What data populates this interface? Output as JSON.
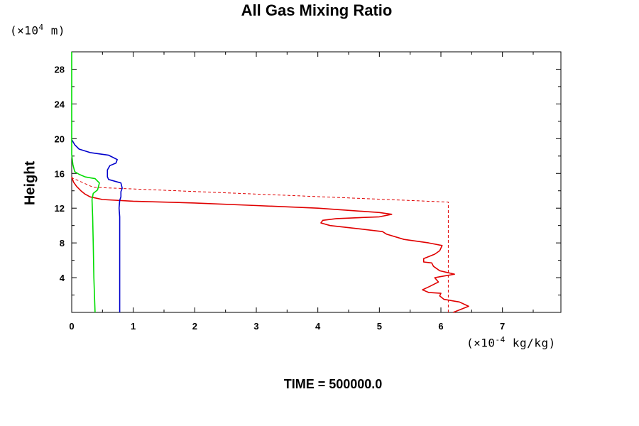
{
  "chart_data": {
    "type": "line",
    "title": "All Gas Mixing Ratio",
    "ylabel": "Height",
    "y_unit_prefix": "(×10",
    "y_unit_exp": "4",
    "y_unit_suffix": " m)",
    "x_unit_prefix": "(×10",
    "x_unit_exp": "-4",
    "x_unit_suffix": " kg/kg)",
    "xlim": [
      0,
      7.95
    ],
    "ylim": [
      0,
      30
    ],
    "xticks": [
      0,
      1,
      2,
      3,
      4,
      5,
      6,
      7
    ],
    "xtick_labels": [
      "0",
      "1",
      "2",
      "3",
      "4",
      "5",
      "6",
      "7"
    ],
    "yticks": [
      4,
      8,
      12,
      16,
      20,
      24,
      28
    ],
    "ytick_labels": [
      "4",
      "8",
      "12",
      "16",
      "20",
      "24",
      "28"
    ],
    "grid": false,
    "colors": {
      "red": "#e00000",
      "blue": "#0000cc",
      "green": "#00dd00",
      "frame": "#000000"
    },
    "series": [
      {
        "color": "red",
        "style": "dashed",
        "points": [
          [
            6.12,
            0
          ],
          [
            6.12,
            12.7
          ],
          [
            0.35,
            14.4
          ],
          [
            0.1,
            15.2
          ],
          [
            0,
            15.5
          ]
        ]
      },
      {
        "color": "red",
        "style": "solid",
        "points": [
          [
            6.2,
            0
          ],
          [
            6.45,
            0.7
          ],
          [
            6.3,
            1.2
          ],
          [
            6.05,
            1.5
          ],
          [
            5.98,
            1.9
          ],
          [
            6.0,
            2.2
          ],
          [
            5.8,
            2.3
          ],
          [
            5.7,
            2.6
          ],
          [
            5.82,
            3.0
          ],
          [
            5.96,
            3.5
          ],
          [
            5.9,
            4.0
          ],
          [
            5.98,
            4.1
          ],
          [
            6.22,
            4.4
          ],
          [
            5.98,
            4.8
          ],
          [
            5.88,
            5.3
          ],
          [
            5.85,
            5.7
          ],
          [
            5.72,
            5.8
          ],
          [
            5.72,
            6.2
          ],
          [
            5.9,
            6.7
          ],
          [
            5.98,
            7.1
          ],
          [
            6.02,
            7.7
          ],
          [
            5.8,
            8.0
          ],
          [
            5.4,
            8.4
          ],
          [
            5.12,
            9.0
          ],
          [
            5.05,
            9.3
          ],
          [
            4.7,
            9.6
          ],
          [
            4.2,
            10.0
          ],
          [
            4.05,
            10.3
          ],
          [
            4.08,
            10.6
          ],
          [
            4.3,
            10.8
          ],
          [
            5.0,
            11.0
          ],
          [
            5.2,
            11.3
          ],
          [
            5.0,
            11.5
          ],
          [
            4.0,
            12.0
          ],
          [
            3.0,
            12.3
          ],
          [
            2.0,
            12.6
          ],
          [
            1.0,
            12.8
          ],
          [
            0.5,
            13.0
          ],
          [
            0.3,
            13.3
          ],
          [
            0.22,
            13.6
          ],
          [
            0.15,
            14.0
          ],
          [
            0.08,
            14.5
          ],
          [
            0.03,
            15.0
          ],
          [
            0,
            15.6
          ]
        ]
      },
      {
        "color": "blue",
        "style": "solid",
        "points": [
          [
            0.78,
            0
          ],
          [
            0.78,
            10.0
          ],
          [
            0.78,
            11.0
          ],
          [
            0.77,
            12.0
          ],
          [
            0.78,
            12.9
          ],
          [
            0.8,
            13.3
          ],
          [
            0.8,
            13.9
          ],
          [
            0.82,
            14.3
          ],
          [
            0.8,
            14.9
          ],
          [
            0.6,
            15.3
          ],
          [
            0.58,
            15.6
          ],
          [
            0.58,
            16.4
          ],
          [
            0.62,
            16.9
          ],
          [
            0.72,
            17.2
          ],
          [
            0.74,
            17.6
          ],
          [
            0.6,
            18.1
          ],
          [
            0.3,
            18.4
          ],
          [
            0.12,
            18.8
          ],
          [
            0.05,
            19.3
          ],
          [
            0,
            19.9
          ]
        ]
      },
      {
        "color": "green",
        "style": "solid",
        "points": [
          [
            0.38,
            0
          ],
          [
            0.36,
            4.0
          ],
          [
            0.35,
            8.0
          ],
          [
            0.34,
            11.0
          ],
          [
            0.33,
            13.0
          ],
          [
            0.35,
            13.7
          ],
          [
            0.42,
            14.1
          ],
          [
            0.45,
            14.9
          ],
          [
            0.38,
            15.4
          ],
          [
            0.22,
            15.6
          ],
          [
            0.12,
            15.9
          ],
          [
            0.05,
            16.2
          ],
          [
            0.02,
            17.0
          ],
          [
            0,
            18.2
          ],
          [
            0,
            30
          ]
        ]
      }
    ]
  },
  "footer": {
    "time_label": "TIME = 500000.0"
  }
}
